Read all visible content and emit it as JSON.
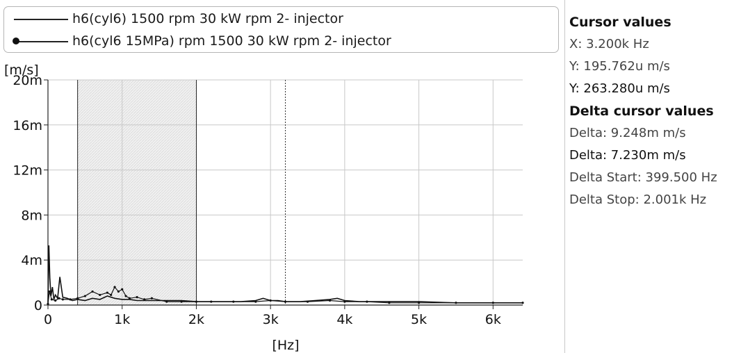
{
  "legend": {
    "series1": "h6(cyl6) 1500 rpm 30 kW rpm 2- injector",
    "series2": "h6(cyl6 15MPa) rpm 1500 30 kW rpm 2- injector"
  },
  "cursor_panel": {
    "heading": "Cursor values",
    "x": "X: 3.200k Hz",
    "y1": "Y: 195.762u m/s",
    "y2": "Y: 263.280u m/s",
    "delta_heading": "Delta cursor values",
    "delta1": "Delta: 9.248m m/s",
    "delta2": "Delta: 7.230m m/s",
    "delta_start": "Delta Start: 399.500 Hz",
    "delta_stop": "Delta Stop: 2.001k Hz"
  },
  "colors": {
    "series": "#111111",
    "grid": "#c8c8c8",
    "band": "#ececec"
  },
  "chart_data": {
    "type": "line",
    "xlabel": "[Hz]",
    "ylabel": "[m/s]",
    "xlim": [
      0,
      6400
    ],
    "ylim": [
      0,
      0.02
    ],
    "x_ticks": [
      0,
      1000,
      2000,
      3000,
      4000,
      5000,
      6000
    ],
    "x_tick_labels": [
      "0",
      "1k",
      "2k",
      "3k",
      "4k",
      "5k",
      "6k"
    ],
    "y_ticks": [
      0,
      0.004,
      0.008,
      0.012,
      0.016,
      0.02
    ],
    "y_tick_labels": [
      "0",
      "4m",
      "8m",
      "12m",
      "16m",
      "20m"
    ],
    "grid": true,
    "legend_position": "top",
    "cursors": {
      "delta_start_hz": 399.5,
      "delta_stop_hz": 2001,
      "x_cursor_hz": 3200
    },
    "series": [
      {
        "name": "h6(cyl6) 1500 rpm 30 kW rpm 2- injector",
        "marker": "none",
        "x": [
          0,
          12,
          25,
          40,
          60,
          80,
          100,
          130,
          160,
          200,
          260,
          330,
          400,
          500,
          600,
          700,
          800,
          900,
          1000,
          1100,
          1200,
          1400,
          1600,
          1800,
          2000,
          2200,
          2400,
          2600,
          2800,
          2900,
          3000,
          3100,
          3200,
          3400,
          3600,
          3800,
          3900,
          4000,
          4200,
          4500,
          5000,
          5500,
          6000,
          6400
        ],
        "y": [
          0.0002,
          0.0053,
          0.0024,
          0.0008,
          0.0016,
          0.0005,
          0.0009,
          0.0006,
          0.0025,
          0.0007,
          0.0006,
          0.0004,
          0.0005,
          0.0004,
          0.0006,
          0.0005,
          0.0008,
          0.0006,
          0.0005,
          0.0005,
          0.0004,
          0.0004,
          0.0004,
          0.0004,
          0.0003,
          0.0003,
          0.0003,
          0.0003,
          0.0004,
          0.0006,
          0.0004,
          0.0004,
          0.0003,
          0.0003,
          0.0004,
          0.0005,
          0.0006,
          0.0004,
          0.0003,
          0.0003,
          0.0003,
          0.0002,
          0.0002,
          0.0002
        ]
      },
      {
        "name": "h6(cyl6 15MPa) rpm 1500 30 kW rpm 2- injector",
        "marker": "circle",
        "x": [
          0,
          20,
          50,
          100,
          150,
          200,
          300,
          400,
          500,
          600,
          700,
          800,
          850,
          900,
          950,
          1000,
          1050,
          1100,
          1200,
          1300,
          1400,
          1600,
          1800,
          2000,
          2200,
          2500,
          2800,
          3000,
          3200,
          3500,
          3800,
          4000,
          4300,
          4600,
          5000,
          5500,
          6000,
          6400
        ],
        "y": [
          0.0001,
          0.0012,
          0.0005,
          0.0004,
          0.0006,
          0.0005,
          0.0005,
          0.0006,
          0.0008,
          0.0012,
          0.0009,
          0.0011,
          0.0009,
          0.0016,
          0.0012,
          0.0014,
          0.0008,
          0.0006,
          0.0007,
          0.0005,
          0.0006,
          0.0003,
          0.0003,
          0.0003,
          0.0003,
          0.0003,
          0.0003,
          0.0004,
          0.0003,
          0.0003,
          0.0004,
          0.0003,
          0.0003,
          0.0002,
          0.0002,
          0.0002,
          0.0002,
          0.0002
        ]
      }
    ]
  }
}
